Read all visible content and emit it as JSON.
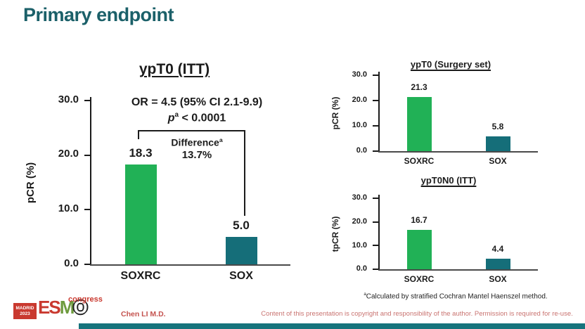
{
  "slide": {
    "title": "Primary endpoint",
    "presenter": "Chen LI M.D.",
    "disclaimer": "Content of this presentation is copyright and responsibility of the author. Permission is required for re-use.",
    "footnote_sup": "a",
    "footnote_text": "Calculated by stratified Cochran Mantel Haenszel method."
  },
  "logo": {
    "city": "MADRID",
    "year": "2023",
    "l1": "E",
    "l2": "S",
    "l3": "M",
    "l4": "O",
    "congress": "congress"
  },
  "annotation": {
    "or_line": "OR = 4.5 (95% CI 2.1-9.9)",
    "p_italic": "p",
    "p_sup": "a",
    "p_rest": " < 0.0001",
    "diff_label": "Difference",
    "diff_sup": "a",
    "diff_value": "13.7%"
  },
  "colors": {
    "accent_teal": "#1b6069",
    "bar_green": "#21b156",
    "bar_teal": "#156e79",
    "logo_red": "#c9392f",
    "footer_red": "#c4524e"
  },
  "chart_data": [
    {
      "type": "bar",
      "title": "ypT0 (ITT)",
      "ylabel": "pCR (%)",
      "ylim": [
        0,
        30
      ],
      "yticks": [
        "30.0",
        "20.0",
        "10.0",
        "0.0"
      ],
      "categories": [
        "SOXRC",
        "SOX"
      ],
      "values": [
        18.3,
        5.0
      ],
      "value_labels": [
        "18.3",
        "5.0"
      ],
      "bar_colors": [
        "green",
        "teal"
      ],
      "grid": false,
      "legend": "none",
      "annotations": [
        "OR = 4.5 (95% CI 2.1-9.9)",
        "p^a < 0.0001",
        "Difference^a 13.7%"
      ]
    },
    {
      "type": "bar",
      "title": "ypT0 (Surgery set)",
      "ylabel": "pCR (%)",
      "ylim": [
        0,
        30
      ],
      "yticks": [
        "30.0",
        "20.0",
        "10.0",
        "0.0"
      ],
      "categories": [
        "SOXRC",
        "SOX"
      ],
      "values": [
        21.3,
        5.8
      ],
      "value_labels": [
        "21.3",
        "5.8"
      ],
      "bar_colors": [
        "green",
        "teal"
      ],
      "grid": false,
      "legend": "none"
    },
    {
      "type": "bar",
      "title": "ypT0N0 (ITT)",
      "ylabel": "tpCR (%)",
      "ylim": [
        0,
        30
      ],
      "yticks": [
        "30.0",
        "20.0",
        "10.0",
        "0.0"
      ],
      "categories": [
        "SOXRC",
        "SOX"
      ],
      "values": [
        16.7,
        4.4
      ],
      "value_labels": [
        "16.7",
        "4.4"
      ],
      "bar_colors": [
        "green",
        "teal"
      ],
      "grid": false,
      "legend": "none"
    }
  ]
}
